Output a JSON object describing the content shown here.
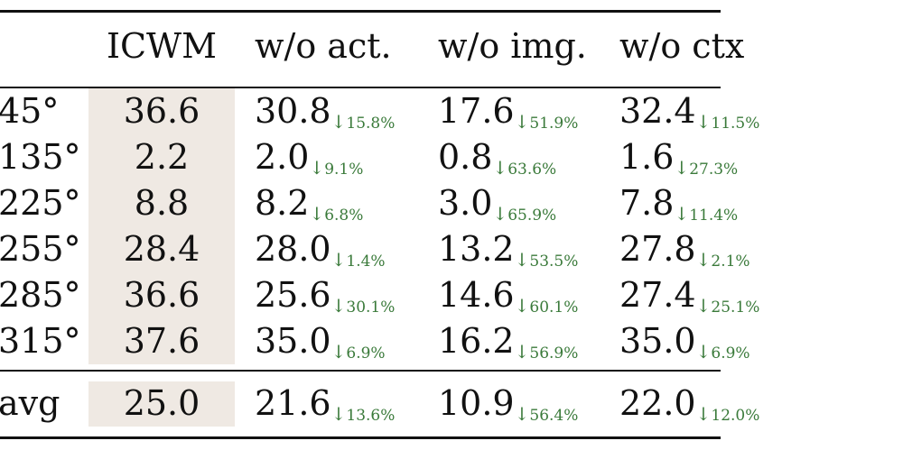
{
  "table": {
    "headers": [
      "ICWM",
      "w/o act.",
      "w/o img.",
      "w/o ctx"
    ],
    "rows": [
      {
        "label": "45°",
        "icwm": "36.6",
        "act": {
          "value": "30.8",
          "drop": "15.8%"
        },
        "img": {
          "value": "17.6",
          "drop": "51.9%"
        },
        "ctx": {
          "value": "32.4",
          "drop": "11.5%"
        }
      },
      {
        "label": "135°",
        "icwm": "2.2",
        "act": {
          "value": "2.0",
          "drop": "9.1%"
        },
        "img": {
          "value": "0.8",
          "drop": "63.6%"
        },
        "ctx": {
          "value": "1.6",
          "drop": "27.3%"
        }
      },
      {
        "label": "225°",
        "icwm": "8.8",
        "act": {
          "value": "8.2",
          "drop": "6.8%"
        },
        "img": {
          "value": "3.0",
          "drop": "65.9%"
        },
        "ctx": {
          "value": "7.8",
          "drop": "11.4%"
        }
      },
      {
        "label": "255°",
        "icwm": "28.4",
        "act": {
          "value": "28.0",
          "drop": "1.4%"
        },
        "img": {
          "value": "13.2",
          "drop": "53.5%"
        },
        "ctx": {
          "value": "27.8",
          "drop": "2.1%"
        }
      },
      {
        "label": "285°",
        "icwm": "36.6",
        "act": {
          "value": "25.6",
          "drop": "30.1%"
        },
        "img": {
          "value": "14.6",
          "drop": "60.1%"
        },
        "ctx": {
          "value": "27.4",
          "drop": "25.1%"
        }
      },
      {
        "label": "315°",
        "icwm": "37.6",
        "act": {
          "value": "35.0",
          "drop": "6.9%"
        },
        "img": {
          "value": "16.2",
          "drop": "56.9%"
        },
        "ctx": {
          "value": "35.0",
          "drop": "6.9%"
        }
      }
    ],
    "avg": {
      "label": "avg",
      "icwm": "25.0",
      "act": {
        "value": "21.6",
        "drop": "13.6%"
      },
      "img": {
        "value": "10.9",
        "drop": "56.4%"
      },
      "ctx": {
        "value": "22.0",
        "drop": "12.0%"
      }
    },
    "arrow_glyph": "↓",
    "colors": {
      "drop_text": "#3a7a3a",
      "highlight_bg": "#efe9e3",
      "rule": "#111111"
    }
  }
}
